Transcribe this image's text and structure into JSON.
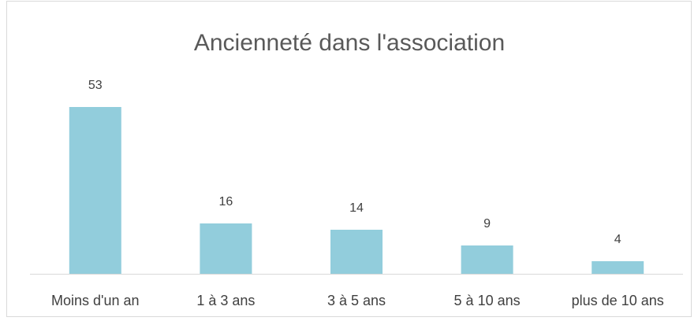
{
  "chart_data": {
    "type": "bar",
    "title": "Ancienneté dans l'association",
    "categories": [
      "Moins d'un an",
      "1 à 3 ans",
      "3 à 5 ans",
      "5 à 10 ans",
      "plus de 10 ans"
    ],
    "values": [
      53,
      16,
      14,
      9,
      4
    ],
    "color": "#92cddc"
  }
}
